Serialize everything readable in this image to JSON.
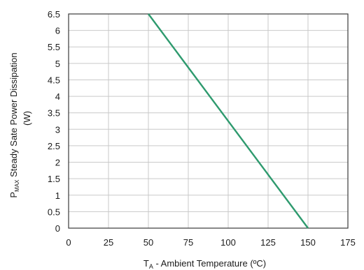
{
  "chart_data": {
    "type": "line",
    "xlabel": {
      "main": "T",
      "sub": "A",
      "rest": " - Ambient Temperature (ºC)"
    },
    "ylabel": {
      "main": "P",
      "sub": "MAX",
      "rest": " Steady Sate Power Dissipation",
      "unit": "(W)"
    },
    "xlim": [
      0,
      175
    ],
    "ylim": [
      0,
      6.5
    ],
    "x_ticks": [
      "0",
      "25",
      "50",
      "75",
      "100",
      "125",
      "150",
      "175"
    ],
    "y_ticks": [
      "0",
      "0.5",
      "1",
      "1.5",
      "2",
      "2.5",
      "3",
      "3.5",
      "4",
      "4.5",
      "5",
      "5.5",
      "6",
      "6.5"
    ],
    "grid": true,
    "line_color": "#2e9a6e",
    "series": [
      {
        "x": [
          50,
          150
        ],
        "y": [
          6.5,
          0
        ]
      }
    ]
  }
}
